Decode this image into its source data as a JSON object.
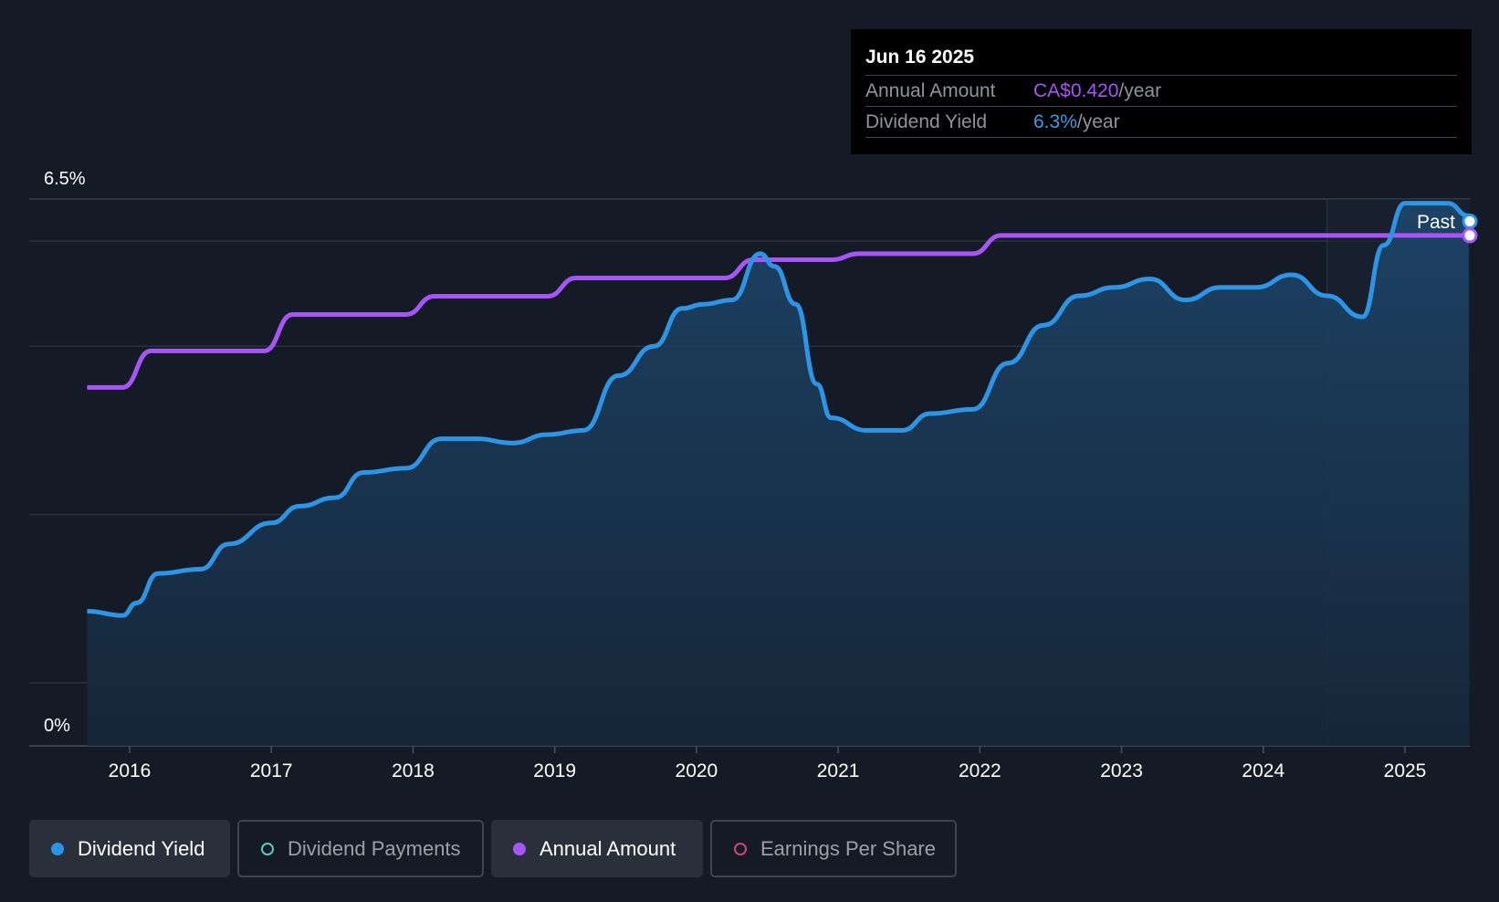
{
  "tooltip": {
    "date": "Jun 16 2025",
    "annual_amount_label": "Annual Amount",
    "annual_amount_value": "CA$0.420",
    "annual_amount_unit": "/year",
    "dividend_yield_label": "Dividend Yield",
    "dividend_yield_value": "6.3%",
    "dividend_yield_unit": "/year"
  },
  "past_label": "Past",
  "legend": [
    {
      "label": "Dividend Yield",
      "color": "#2d95e6",
      "active": true,
      "filled": true
    },
    {
      "label": "Dividend Payments",
      "color": "#5ec8c0",
      "active": false,
      "filled": false
    },
    {
      "label": "Annual Amount",
      "color": "#a855f7",
      "active": true,
      "filled": true
    },
    {
      "label": "Earnings Per Share",
      "color": "#d0447a",
      "active": false,
      "filled": false
    }
  ],
  "chart_data": {
    "type": "line",
    "x_ticks": [
      "2016",
      "2017",
      "2018",
      "2019",
      "2020",
      "2021",
      "2022",
      "2023",
      "2024",
      "2025"
    ],
    "y_tick_labels": [
      "6.5%",
      "0%"
    ],
    "ylim": [
      0,
      6.5
    ],
    "xlim": [
      2015.7,
      2025.45
    ],
    "past_region_start": 2024.45,
    "grid": true,
    "colors": {
      "dividend_yield": "#2d95e6",
      "annual_amount": "#a855f7",
      "area": "#1b3e5e"
    },
    "series": [
      {
        "name": "Dividend Yield",
        "unit": "%",
        "x": [
          2015.7,
          2015.95,
          2016.05,
          2016.2,
          2016.5,
          2016.7,
          2017.0,
          2017.2,
          2017.45,
          2017.65,
          2017.95,
          2018.2,
          2018.45,
          2018.7,
          2018.95,
          2019.2,
          2019.45,
          2019.7,
          2019.9,
          2020.05,
          2020.25,
          2020.45,
          2020.55,
          2020.7,
          2020.85,
          2020.95,
          2021.2,
          2021.45,
          2021.65,
          2021.95,
          2022.2,
          2022.45,
          2022.7,
          2022.95,
          2023.2,
          2023.45,
          2023.7,
          2023.95,
          2024.2,
          2024.45,
          2024.7,
          2024.85,
          2025.0,
          2025.3,
          2025.45
        ],
        "y": [
          1.6,
          1.55,
          1.7,
          2.05,
          2.1,
          2.4,
          2.65,
          2.85,
          2.95,
          3.25,
          3.3,
          3.65,
          3.65,
          3.6,
          3.7,
          3.75,
          4.4,
          4.75,
          5.2,
          5.25,
          5.3,
          5.85,
          5.7,
          5.25,
          4.3,
          3.9,
          3.75,
          3.75,
          3.95,
          4.0,
          4.55,
          5.0,
          5.35,
          5.45,
          5.55,
          5.3,
          5.45,
          5.45,
          5.6,
          5.35,
          5.1,
          5.95,
          6.45,
          6.45,
          6.3
        ]
      },
      {
        "name": "Annual Amount",
        "unit": "CA$/year",
        "x": [
          2015.7,
          2015.95,
          2016.15,
          2016.95,
          2017.15,
          2017.95,
          2018.15,
          2018.95,
          2019.15,
          2020.2,
          2020.4,
          2020.95,
          2021.15,
          2021.95,
          2022.15,
          2025.45
        ],
        "y": [
          0.295,
          0.295,
          0.325,
          0.325,
          0.355,
          0.355,
          0.37,
          0.37,
          0.385,
          0.385,
          0.4,
          0.4,
          0.405,
          0.405,
          0.42,
          0.42
        ],
        "plot_scale": "ticks 6.5% grid line maps to 0.45 CA$"
      }
    ]
  }
}
